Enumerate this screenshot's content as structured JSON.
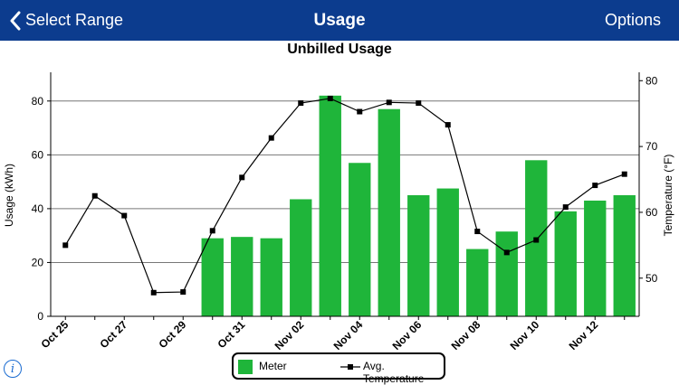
{
  "nav": {
    "back_label": "Select Range",
    "title": "Usage",
    "options_label": "Options"
  },
  "legend": {
    "meter_label": "Meter",
    "temp_label": "Avg. Temperature"
  },
  "colors": {
    "nav_bg": "#0c3c8e",
    "bar": "#1fb53a",
    "line": "#000000"
  },
  "icons": {
    "back": "chevron-left-icon",
    "info": "info-icon"
  },
  "chart_data": {
    "type": "bar",
    "title": "Unbilled Usage",
    "ylabel": "Usage (kWh)",
    "y2label": "Temperature (°F)",
    "ylim": [
      0,
      90
    ],
    "y_ticks": [
      0,
      20,
      40,
      60,
      80
    ],
    "y2lim": [
      44.2,
      81
    ],
    "y2_ticks": [
      50,
      60,
      70,
      80
    ],
    "grid": true,
    "legend_position": "bottom",
    "x": [
      "Oct 25",
      "Oct 26",
      "Oct 27",
      "Oct 28",
      "Oct 29",
      "Oct 30",
      "Oct 31",
      "Nov 01",
      "Nov 02",
      "Nov 03",
      "Nov 04",
      "Nov 05",
      "Nov 06",
      "Nov 07",
      "Nov 08",
      "Nov 09",
      "Nov 10",
      "Nov 11",
      "Nov 12",
      "Nov 13"
    ],
    "x_tick_labels": [
      "Oct 25",
      "Oct 27",
      "Oct 29",
      "Oct 31",
      "Nov 02",
      "Nov 04",
      "Nov 06",
      "Nov 08",
      "Nov 10",
      "Nov 12"
    ],
    "series": [
      {
        "name": "Meter",
        "type": "bar",
        "values": [
          null,
          null,
          null,
          null,
          null,
          29,
          29.5,
          29,
          43.5,
          82,
          57,
          77,
          45,
          47.5,
          25,
          31.5,
          58,
          39,
          43,
          45
        ]
      },
      {
        "name": "Avg. Temperature",
        "type": "line",
        "axis": "right",
        "values": [
          55,
          62.5,
          59.5,
          47.8,
          47.9,
          57.2,
          65.3,
          71.3,
          76.6,
          77.3,
          75.3,
          76.7,
          76.6,
          73.3,
          57.1,
          53.9,
          55.8,
          60.8,
          64.1,
          65.8
        ]
      }
    ]
  }
}
